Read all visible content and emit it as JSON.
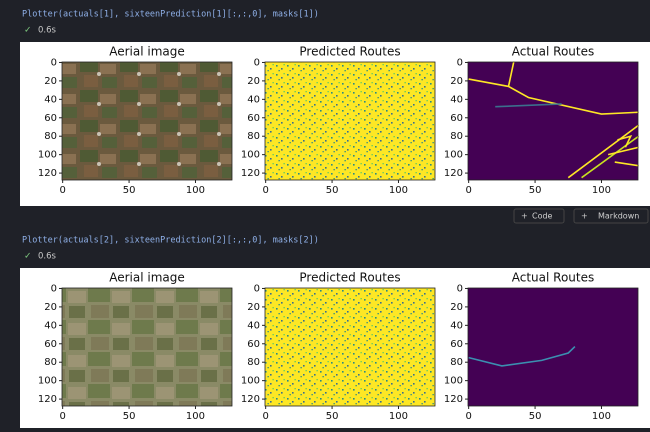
{
  "cells": [
    {
      "code": "Plotter(actuals[1], sixteenPrediction[1][:,:,0], masks[1])",
      "time": "0.6s",
      "titles": [
        "Aerial image",
        "Predicted Routes",
        "Actual Routes"
      ]
    },
    {
      "code": "Plotter(actuals[2], sixteenPrediction[2][:,:,0], masks[2])",
      "time": "0.6s",
      "titles": [
        "Aerial image",
        "Predicted Routes",
        "Actual Routes"
      ]
    }
  ],
  "axes": {
    "xticks": [
      0,
      50,
      100
    ],
    "yticks": [
      0,
      20,
      40,
      60,
      80,
      100,
      120
    ]
  },
  "toolbar": {
    "code": "Code",
    "markdown": "Markdown"
  }
}
